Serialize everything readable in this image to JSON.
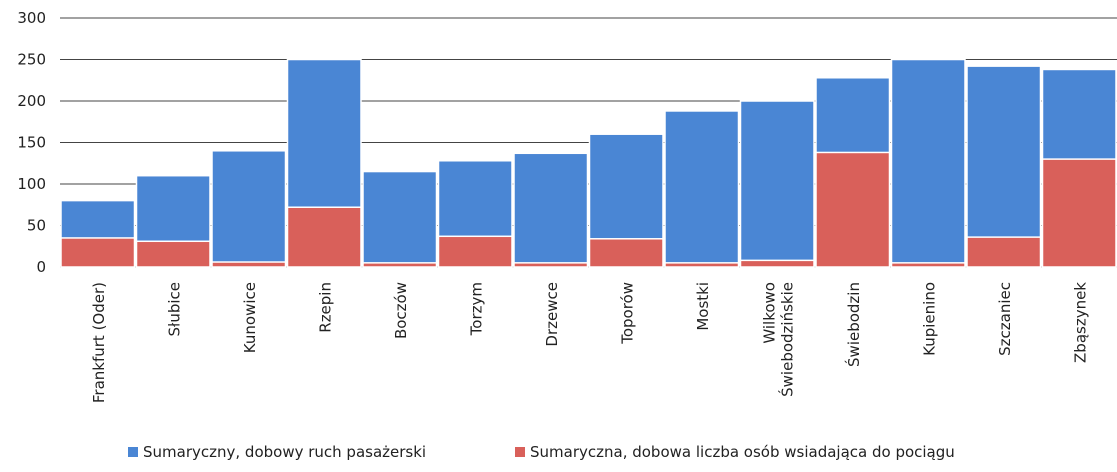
{
  "chart_data": {
    "type": "bar",
    "categories": [
      "Frankfurt (Oder)",
      "Słubice",
      "Kunowice",
      "Rzepin",
      "Boczów",
      "Torzym",
      "Drzewce",
      "Toporów",
      "Mostki",
      "Wilkowo Świebodzińskie",
      "Świebodzin",
      "Kupienino",
      "Szczaniec",
      "Zbąszynek"
    ],
    "series": [
      {
        "name": "Sumaryczny, dobowy ruch pasażerski",
        "color": "#4a86d4",
        "values": [
          80,
          110,
          140,
          250,
          115,
          128,
          137,
          160,
          188,
          200,
          228,
          250,
          242,
          238
        ]
      },
      {
        "name": "Sumaryczna, dobowa liczba osób wsiadająca do pociągu",
        "color": "#d9605a",
        "values": [
          35,
          31,
          6,
          72,
          5,
          37,
          5,
          34,
          5,
          8,
          138,
          5,
          36,
          130
        ]
      }
    ],
    "ylim": [
      0,
      300
    ],
    "yticks": [
      0,
      50,
      100,
      150,
      200,
      250,
      300
    ],
    "grid": true,
    "legend": "bottom"
  }
}
